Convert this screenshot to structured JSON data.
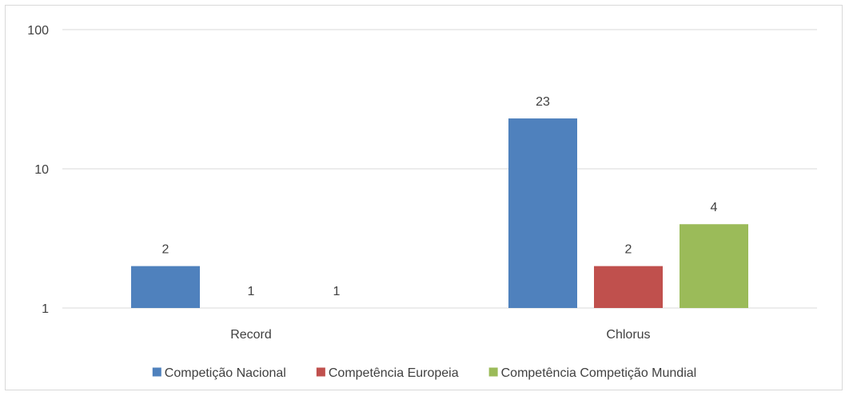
{
  "chart_data": {
    "type": "bar",
    "y_scale": "log",
    "ylim": [
      1,
      100
    ],
    "y_ticks": [
      1,
      10,
      100
    ],
    "y_tick_labels": [
      "1",
      "10",
      "100"
    ],
    "categories": [
      "Record",
      "Chlorus"
    ],
    "series": [
      {
        "name": "Competição Nacional",
        "color": "#4f81bd",
        "values": [
          2,
          23
        ]
      },
      {
        "name": "Competência Europeia",
        "color": "#c0504d",
        "values": [
          1,
          2
        ]
      },
      {
        "name": "Competência Competição Mundial",
        "color": "#9bbb59",
        "values": [
          1,
          4
        ]
      }
    ],
    "data_labels": true,
    "grid": "horizontal",
    "legend_position": "bottom"
  }
}
